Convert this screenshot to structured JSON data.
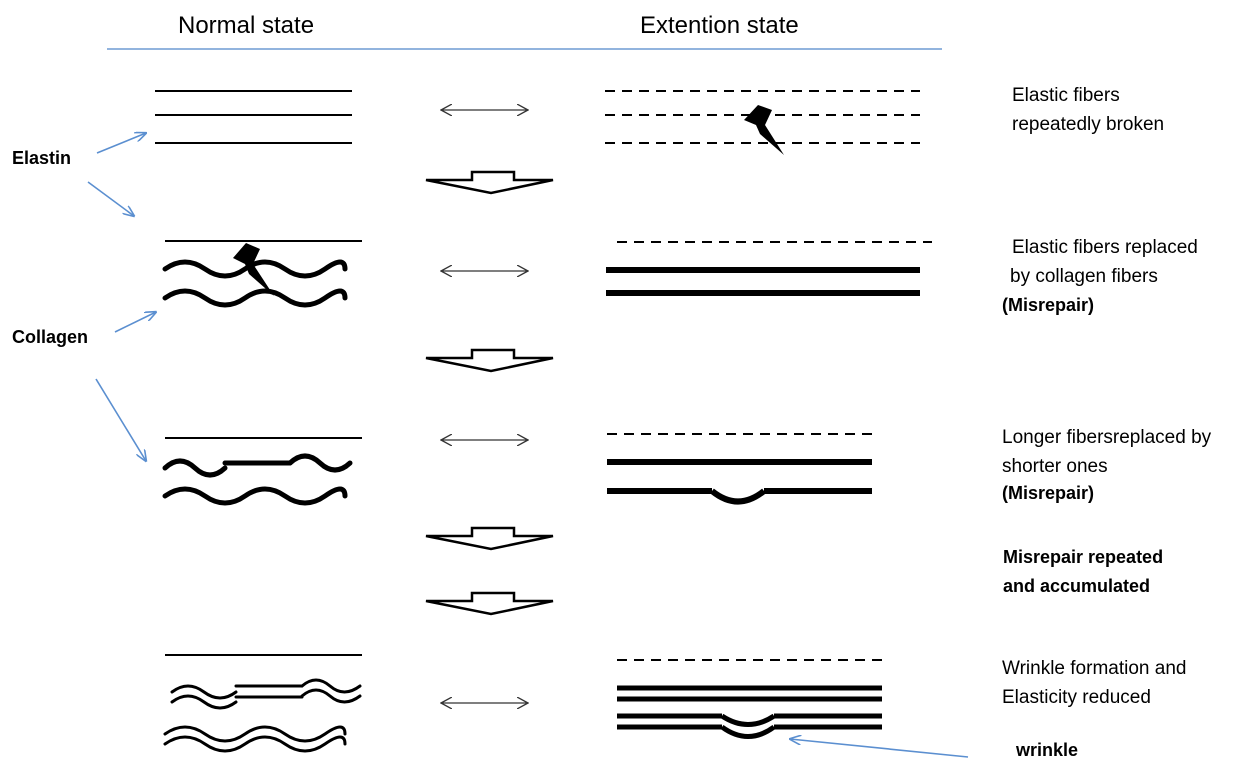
{
  "headers": {
    "normal": "Normal state",
    "extension": "Extention state"
  },
  "left_labels": {
    "elastin": "Elastin",
    "collagen": "Collagen"
  },
  "steps": [
    {
      "line1": "Elastic fibers",
      "line2": "repeatedly broken",
      "note": ""
    },
    {
      "line1": "Elastic fibers replaced",
      "line2": "by collagen fibers",
      "note": "(Misrepair)"
    },
    {
      "line1": "Longer fibersreplaced by",
      "line2": "shorter ones",
      "note": "(Misrepair)"
    },
    {
      "line1": "Misrepair repeated",
      "line2": "and accumulated",
      "note": ""
    },
    {
      "line1": "Wrinkle formation and",
      "line2": "Elasticity reduced",
      "note": ""
    }
  ],
  "wrinkle_label": "wrinkle",
  "colors": {
    "ink": "#000000",
    "pointer_arrow": "#5b8fd0",
    "header_rule": "#6f9bd3"
  }
}
